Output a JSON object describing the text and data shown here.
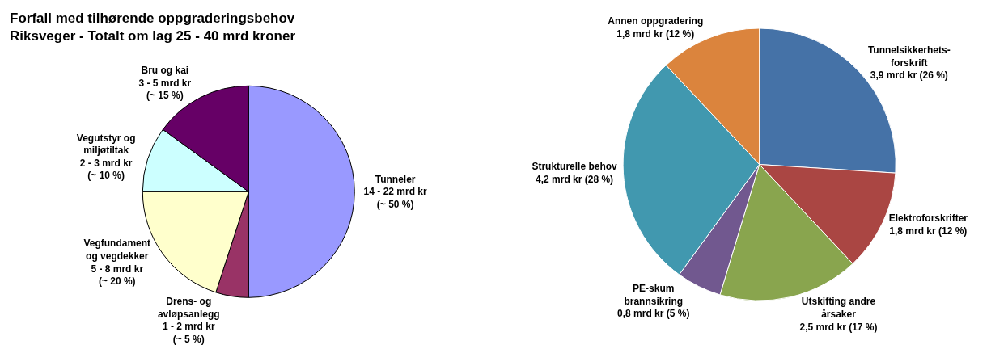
{
  "chart_data": [
    {
      "type": "pie",
      "title": "Forfall med tilhørende oppgraderingsbehov\nRiksveger - Totalt om lag 25 - 40 mrd kroner",
      "categories": [
        "Tunneler",
        "Drens- og\navløpsanlegg",
        "Vegfundament\nog vegdekker",
        "Vegutstyr og\nmiljøtiltak",
        "Bru og kai"
      ],
      "values": [
        50,
        5,
        20,
        10,
        15
      ],
      "value_labels": [
        "14 - 22 mrd kr\n(~ 50 %)",
        "1 - 2 mrd kr\n(~ 5 %)",
        "5 - 8 mrd kr\n(~ 20 %)",
        "2 - 3 mrd kr\n(~ 10 %)",
        "3 - 5 mrd kr\n(~ 15 %)"
      ],
      "colors": [
        "#9999ff",
        "#993366",
        "#ffffcc",
        "#ccffff",
        "#660066"
      ]
    },
    {
      "type": "pie",
      "categories": [
        "Tunnelsikkerhets-\nforskrift",
        "Elektroforskrifter",
        "Utskifting andre\nårsaker",
        "PE-skum\nbrannsikring",
        "Strukturelle behov",
        "Annen oppgradering"
      ],
      "values": [
        3.9,
        1.8,
        2.5,
        0.8,
        4.2,
        1.8
      ],
      "value_labels": [
        "3,9 mrd kr (26 %)",
        "1,8 mrd kr (12 %)",
        "2,5 mrd kr (17 %)",
        "0,8 mrd kr (5 %)",
        "4,2 mrd kr (28 %)",
        "1,8 mrd kr (12 %)"
      ],
      "colors": [
        "#4572a7",
        "#aa4643",
        "#89a54e",
        "#71588f",
        "#4198af",
        "#db843d"
      ]
    }
  ]
}
